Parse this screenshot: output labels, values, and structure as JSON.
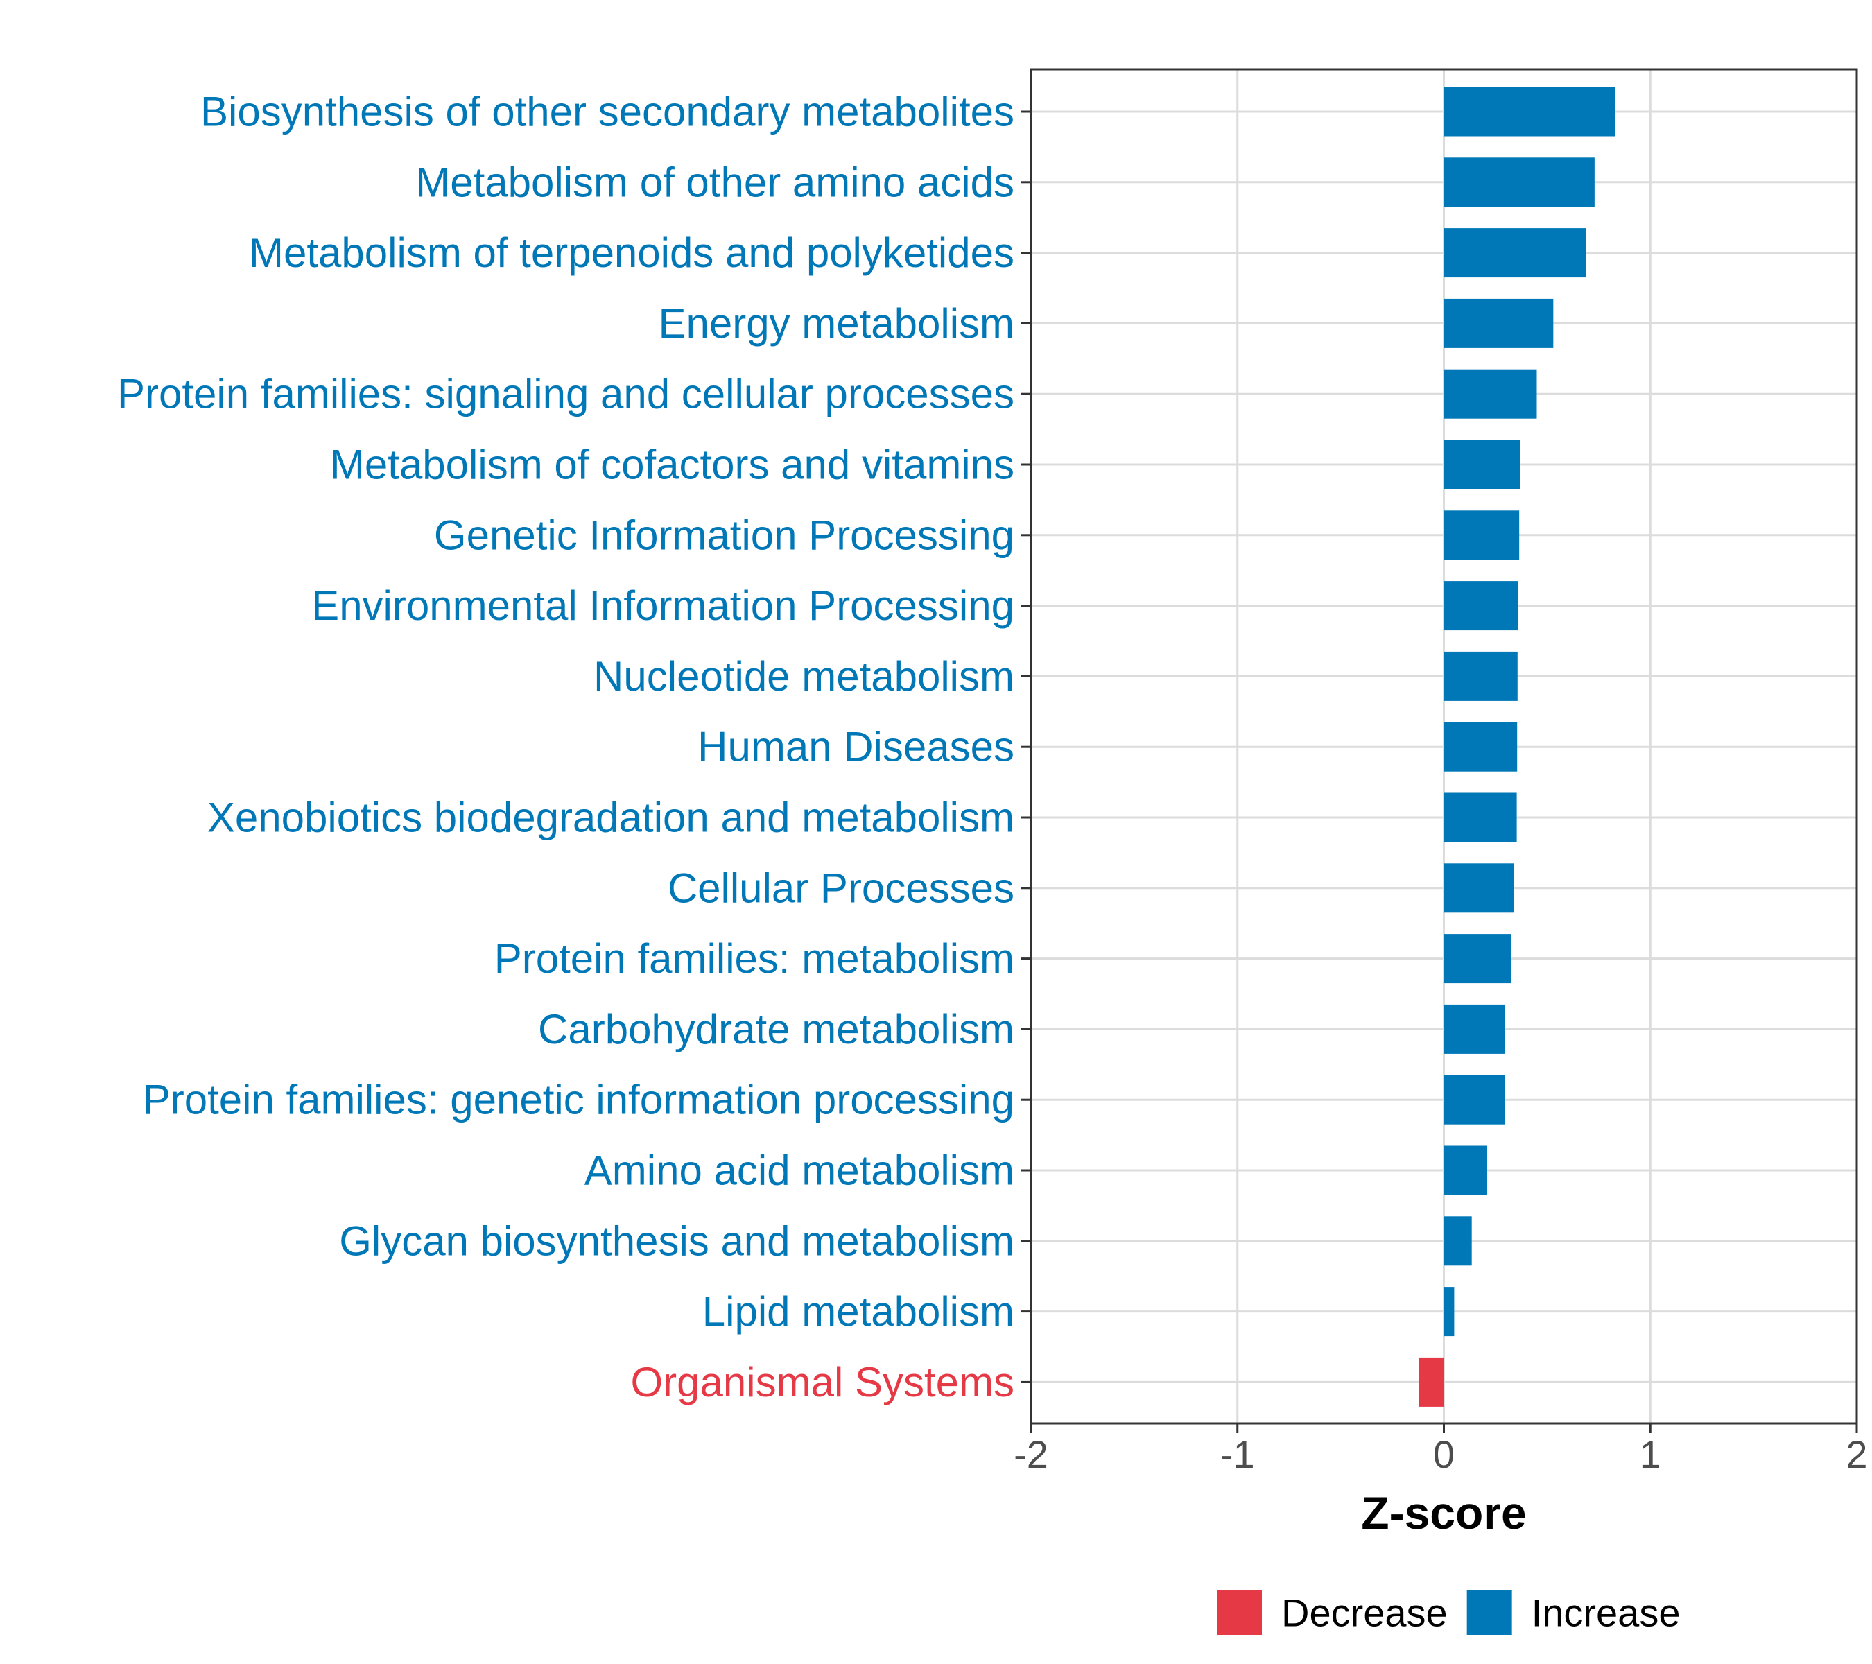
{
  "chart_data": {
    "type": "bar",
    "orientation": "horizontal",
    "xlabel": "Z-score",
    "ylabel": "",
    "xlim": [
      -2,
      2
    ],
    "x_ticks": [
      "-2",
      "-1",
      "0",
      "1",
      "2"
    ],
    "grid": true,
    "legend_position": "bottom",
    "categories": [
      "Biosynthesis of other secondary metabolites",
      "Metabolism of other amino acids",
      "Metabolism of terpenoids and polyketides",
      "Energy metabolism",
      "Protein families: signaling and cellular processes",
      "Metabolism of cofactors and vitamins",
      "Genetic Information Processing",
      "Environmental Information Processing",
      "Nucleotide metabolism",
      "Human Diseases",
      "Xenobiotics biodegradation and metabolism",
      "Cellular Processes",
      "Protein families: metabolism",
      "Carbohydrate metabolism",
      "Protein families: genetic information processing",
      "Amino acid metabolism",
      "Glycan biosynthesis and metabolism",
      "Lipid metabolism",
      "Organismal Systems"
    ],
    "values": [
      0.83,
      0.73,
      0.69,
      0.53,
      0.45,
      0.37,
      0.365,
      0.36,
      0.357,
      0.355,
      0.353,
      0.34,
      0.325,
      0.295,
      0.295,
      0.21,
      0.135,
      0.05,
      -0.12
    ],
    "groups": [
      "Increase",
      "Increase",
      "Increase",
      "Increase",
      "Increase",
      "Increase",
      "Increase",
      "Increase",
      "Increase",
      "Increase",
      "Increase",
      "Increase",
      "Increase",
      "Increase",
      "Increase",
      "Increase",
      "Increase",
      "Increase",
      "Decrease"
    ],
    "legend": [
      {
        "label": "Decrease",
        "color": "#e63946"
      },
      {
        "label": "Increase",
        "color": "#0077b6"
      }
    ]
  }
}
